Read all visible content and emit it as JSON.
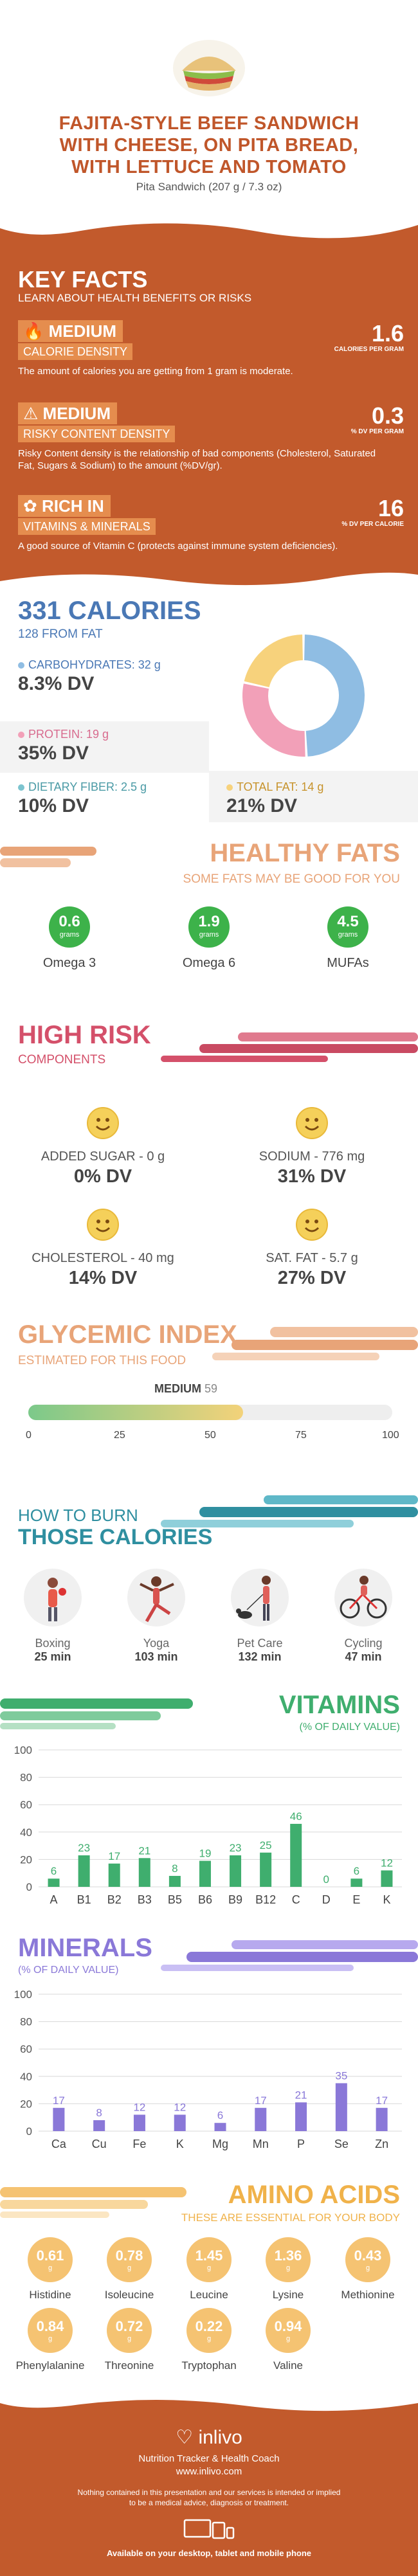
{
  "header": {
    "title_line1": "FAJITA-STYLE BEEF SANDWICH",
    "title_line2": "WITH CHEESE, ON PITA BREAD,",
    "title_line3": "WITH LETTUCE AND TOMATO",
    "subtitle": "Pita Sandwich (207 g / 7.3 oz)",
    "image_icon": "sandwich-image"
  },
  "key_facts": {
    "title": "KEY FACTS",
    "subtitle": "LEARN ABOUT HEALTH BENEFITS OR RISKS",
    "items": [
      {
        "icon": "flame-icon",
        "level": "MEDIUM",
        "name": "CALORIE DENSITY",
        "value": "1.6",
        "unit": "CALORIES PER GRAM",
        "description": "The amount of calories you are getting from 1 gram is moderate."
      },
      {
        "icon": "warning-icon",
        "level": "MEDIUM",
        "name": "RISKY CONTENT DENSITY",
        "value": "0.3",
        "unit": "% DV PER GRAM",
        "description": "Risky Content density is the relationship of bad components (Cholesterol, Saturated Fat, Sugars & Sodium) to the amount (%DV/gr)."
      },
      {
        "icon": "leaf-icon",
        "level": "RICH  IN",
        "name": "VITAMINS & MINERALS",
        "value": "16",
        "unit": "% DV PER CALORIE",
        "description": "A good source of Vitamin C (protects against immune system deficiencies)."
      }
    ]
  },
  "calories": {
    "title": "331 CALORIES",
    "from_fat": "128 FROM FAT",
    "carbs_label": "CARBOHYDRATES: 32 g",
    "carbs_dv": "8.3% DV",
    "protein_label": "PROTEIN: 19 g",
    "protein_dv": "35% DV",
    "fiber_label": "DIETARY FIBER: 2.5 g",
    "fiber_dv": "10% DV",
    "fat_label": "TOTAL FAT: 14 g",
    "fat_dv": "21% DV",
    "donut": [
      {
        "name": "carbohydrates",
        "grams": 32,
        "color": "#8fbde3"
      },
      {
        "name": "protein",
        "grams": 19,
        "color": "#f2a0b8"
      },
      {
        "name": "fat",
        "grams": 14,
        "color": "#f7d27c"
      }
    ]
  },
  "fats": {
    "title": "HEALTHY FATS",
    "subtitle": "SOME FATS MAY BE GOOD FOR YOU",
    "items": [
      {
        "value": "0.6",
        "unit": "grams",
        "label": "Omega 3"
      },
      {
        "value": "1.9",
        "unit": "grams",
        "label": "Omega 6"
      },
      {
        "value": "4.5",
        "unit": "grams",
        "label": "MUFAs"
      }
    ]
  },
  "risk": {
    "title": "HIGH RISK",
    "subtitle": "COMPONENTS",
    "items": [
      {
        "label": "ADDED SUGAR - 0 g",
        "dv": "0% DV",
        "face": "grin-face-icon"
      },
      {
        "label": "SODIUM - 776 mg",
        "dv": "31% DV",
        "face": "smile-face-icon"
      },
      {
        "label": "CHOLESTEROL - 40 mg",
        "dv": "14% DV",
        "face": "smile-face-icon"
      },
      {
        "label": "SAT. FAT - 5.7 g",
        "dv": "27% DV",
        "face": "smile-face-icon"
      }
    ]
  },
  "glycemic": {
    "title": "GLYCEMIC INDEX",
    "subtitle": "ESTIMATED FOR THIS FOOD",
    "level": "MEDIUM",
    "value": 59,
    "value_text": "59",
    "ticks": [
      "0",
      "25",
      "50",
      "75",
      "100"
    ]
  },
  "burn": {
    "title1": "HOW TO BURN",
    "title2": "THOSE CALORIES",
    "activities": [
      {
        "name": "Boxing",
        "time": "25 min",
        "icon": "boxing-icon"
      },
      {
        "name": "Yoga",
        "time": "103 min",
        "icon": "yoga-icon"
      },
      {
        "name": "Pet Care",
        "time": "132 min",
        "icon": "dog-walking-icon"
      },
      {
        "name": "Cycling",
        "time": "47 min",
        "icon": "cycling-icon"
      }
    ]
  },
  "chart_data": [
    {
      "type": "bar",
      "title": "VITAMINS",
      "subtitle": "(% OF DAILY VALUE)",
      "categories": [
        "A",
        "B1",
        "B2",
        "B3",
        "B5",
        "B6",
        "B9",
        "B12",
        "C",
        "D",
        "E",
        "K"
      ],
      "values": [
        6,
        23,
        17,
        21,
        8,
        19,
        23,
        25,
        46,
        0,
        6,
        12
      ],
      "ylim": [
        0,
        100
      ],
      "yticks": [
        "0",
        "20",
        "40",
        "60",
        "80",
        "100"
      ],
      "color": "#3fae6e",
      "grid": true
    },
    {
      "type": "bar",
      "title": "MINERALS",
      "subtitle": "(% OF DAILY VALUE)",
      "categories": [
        "Ca",
        "Cu",
        "Fe",
        "K",
        "Mg",
        "Mn",
        "P",
        "Se",
        "Zn"
      ],
      "values": [
        17,
        8,
        12,
        12,
        6,
        17,
        21,
        35,
        17
      ],
      "ylim": [
        0,
        100
      ],
      "yticks": [
        "0",
        "20",
        "40",
        "60",
        "80",
        "100"
      ],
      "color": "#8a78d8",
      "grid": true
    }
  ],
  "amino": {
    "title": "AMINO ACIDS",
    "subtitle": "THESE ARE ESSENTIAL FOR YOUR BODY",
    "items": [
      {
        "value": "0.61",
        "unit": "g",
        "label": "Histidine"
      },
      {
        "value": "0.78",
        "unit": "g",
        "label": "Isoleucine"
      },
      {
        "value": "1.45",
        "unit": "g",
        "label": "Leucine"
      },
      {
        "value": "1.36",
        "unit": "g",
        "label": "Lysine"
      },
      {
        "value": "0.43",
        "unit": "g",
        "label": "Methionine"
      },
      {
        "value": "0.84",
        "unit": "g",
        "label": "Phenylalanine"
      },
      {
        "value": "0.72",
        "unit": "g",
        "label": "Threonine"
      },
      {
        "value": "0.22",
        "unit": "g",
        "label": "Tryptophan"
      },
      {
        "value": "0.94",
        "unit": "g",
        "label": "Valine"
      }
    ]
  },
  "footer": {
    "brand": "inlivo",
    "tagline": "Nutrition Tracker & Health Coach",
    "url": "www.inlivo.com",
    "disclaimer1": "Nothing contained in this presentation and our services is intended or implied",
    "disclaimer2": "to be a medical advice, diagnosis or treatment.",
    "devices": "Available on your desktop, tablet and mobile phone"
  }
}
